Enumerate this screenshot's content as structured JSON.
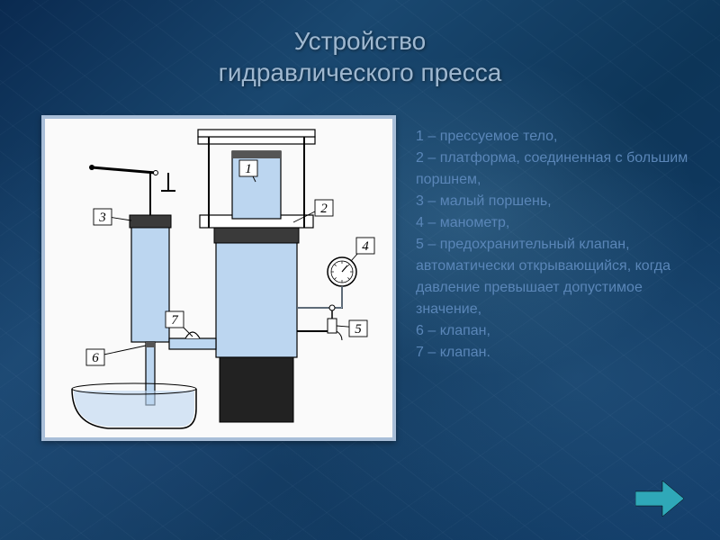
{
  "title": {
    "line1": "Устройство",
    "line2": "гидравлического пресса"
  },
  "legend": {
    "items": [
      "1 – прессуемое тело,",
      "2 – платформа, соединенная с большим поршнем,",
      "3 – малый поршень,",
      "4 – манометр,",
      "5 – предохранительный клапан, автоматически открывающийся, когда давление превышает допустимое значение,",
      "6 – клапан,",
      "7 – клапан."
    ]
  },
  "diagram": {
    "labels": {
      "l1": "1",
      "l2": "2",
      "l3": "3",
      "l4": "4",
      "l5": "5",
      "l6": "6",
      "l7": "7"
    },
    "colors": {
      "fluid": "#bcd6f0",
      "piston_dark": "#3a3a3a",
      "outline": "#000000",
      "callout_fill": "#ffffff",
      "label_font": "italic 16px serif"
    }
  },
  "nav": {
    "color": "#2fa8b8"
  }
}
